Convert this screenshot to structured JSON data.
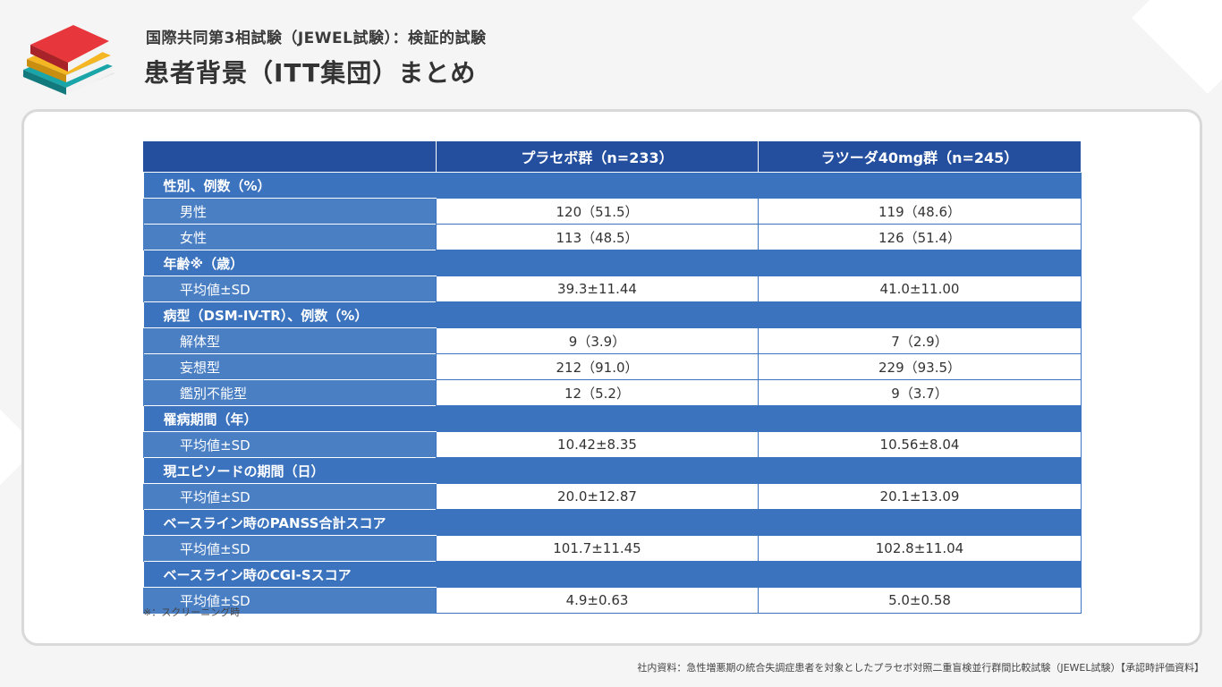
{
  "header": {
    "subtitle": "国際共同第3相試験（JEWEL試験）：検証的試験",
    "title": "患者背景（ITT集団）まとめ"
  },
  "table": {
    "columns": [
      "",
      "プラセボ群（n=233）",
      "ラツーダ40mg群（n=245）"
    ],
    "sections": [
      {
        "heading": "性別、例数（%）",
        "rows": [
          {
            "label": "男性",
            "placebo": "120（51.5）",
            "latuda": "119（48.6）"
          },
          {
            "label": "女性",
            "placebo": "113（48.5）",
            "latuda": "126（51.4）"
          }
        ]
      },
      {
        "heading": "年齢※（歳）",
        "rows": [
          {
            "label": "平均値±SD",
            "placebo": "39.3±11.44",
            "latuda": "41.0±11.00"
          }
        ]
      },
      {
        "heading": "病型（DSM-IV-TR）、例数（%）",
        "rows": [
          {
            "label": "解体型",
            "placebo": "9（3.9）",
            "latuda": "7（2.9）"
          },
          {
            "label": "妄想型",
            "placebo": "212（91.0）",
            "latuda": "229（93.5）"
          },
          {
            "label": "鑑別不能型",
            "placebo": "12（5.2）",
            "latuda": "9（3.7）"
          }
        ]
      },
      {
        "heading": "罹病期間（年）",
        "rows": [
          {
            "label": "平均値±SD",
            "placebo": "10.42±8.35",
            "latuda": "10.56±8.04"
          }
        ]
      },
      {
        "heading": "現エピソードの期間（日）",
        "rows": [
          {
            "label": "平均値±SD",
            "placebo": "20.0±12.87",
            "latuda": "20.1±13.09"
          }
        ]
      },
      {
        "heading": "ベースライン時のPANSS合計スコア",
        "rows": [
          {
            "label": "平均値±SD",
            "placebo": "101.7±11.45",
            "latuda": "102.8±11.04"
          }
        ]
      },
      {
        "heading": "ベースライン時のCGI-Sスコア",
        "rows": [
          {
            "label": "平均値±SD",
            "placebo": "4.9±0.63",
            "latuda": "5.0±0.58"
          }
        ]
      }
    ]
  },
  "footnote": "※：スクリーニング時",
  "source": "社内資料：急性増悪期の統合失調症患者を対象としたプラセボ対照二重盲検並行群間比較試験（JEWEL試験）【承認時評価資料】",
  "icons": {
    "logo": "books-stack-icon"
  },
  "colors": {
    "header_blue": "#244e9e",
    "section_blue": "#3b73be",
    "label_blue": "#4a7fc4"
  }
}
